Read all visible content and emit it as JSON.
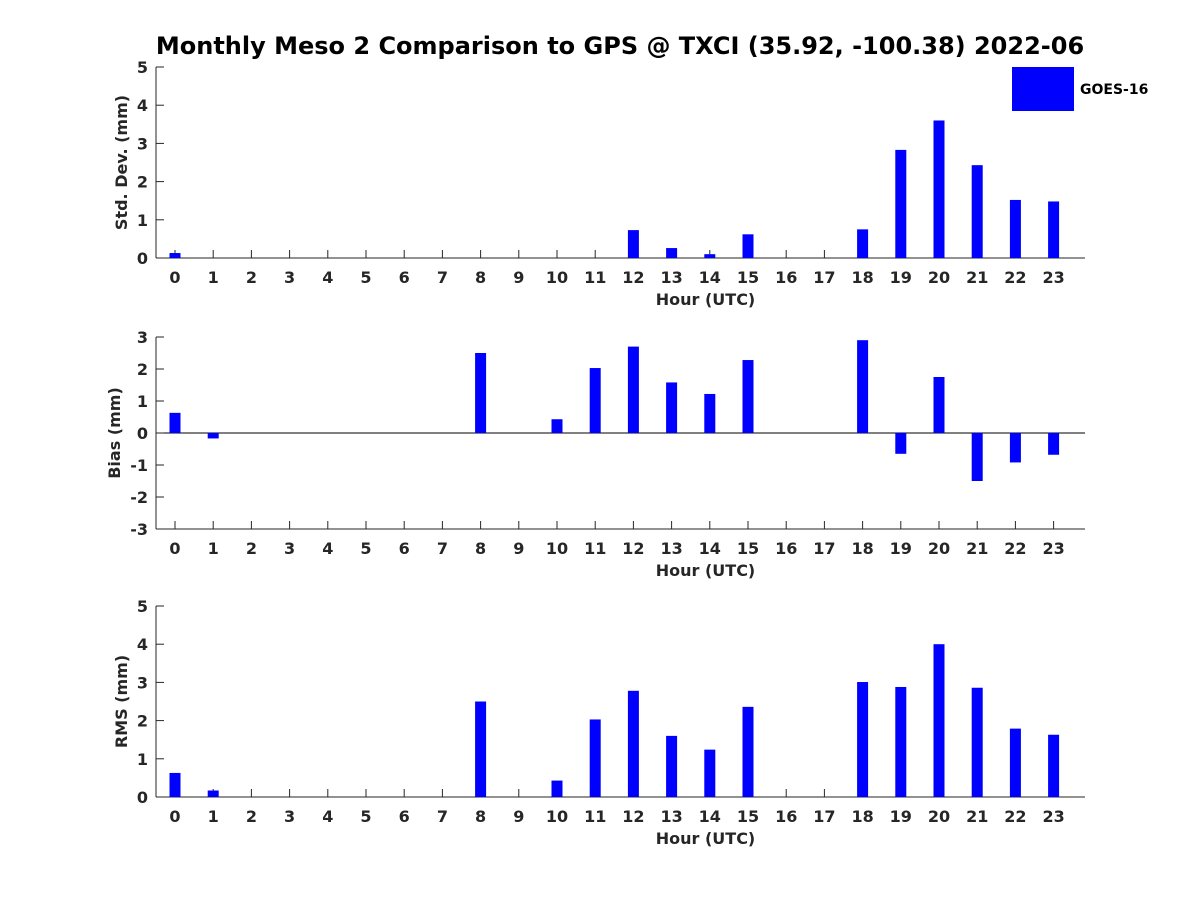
{
  "title": "Monthly Meso 2 Comparison to GPS @ TXCI (35.92, -100.38) 2022-06",
  "legend": {
    "label": "GOES-16",
    "placement": "top-right"
  },
  "colors": {
    "bar": "#0000ff",
    "axis": "#262626"
  },
  "chart_data": [
    {
      "type": "bar",
      "ylabel": "Std. Dev. (mm)",
      "xlabel": "Hour (UTC)",
      "ylim": [
        0,
        5
      ],
      "yticks": [
        0,
        1,
        2,
        3,
        4,
        5
      ],
      "categories": [
        "0",
        "1",
        "2",
        "3",
        "4",
        "5",
        "6",
        "7",
        "8",
        "9",
        "10",
        "11",
        "12",
        "13",
        "14",
        "15",
        "16",
        "17",
        "18",
        "19",
        "20",
        "21",
        "22",
        "23"
      ],
      "series": [
        {
          "name": "GOES-16",
          "values": [
            0.13,
            0,
            0,
            0,
            0,
            0,
            0,
            0,
            0,
            0,
            0,
            0,
            0.73,
            0.26,
            0.1,
            0.62,
            0,
            0,
            0.75,
            2.83,
            3.6,
            2.43,
            1.52,
            1.48
          ]
        }
      ]
    },
    {
      "type": "bar",
      "ylabel": "Bias (mm)",
      "xlabel": "Hour (UTC)",
      "ylim": [
        -3,
        3
      ],
      "yticks": [
        -3,
        -2,
        -1,
        0,
        1,
        2,
        3
      ],
      "categories": [
        "0",
        "1",
        "2",
        "3",
        "4",
        "5",
        "6",
        "7",
        "8",
        "9",
        "10",
        "11",
        "12",
        "13",
        "14",
        "15",
        "16",
        "17",
        "18",
        "19",
        "20",
        "21",
        "22",
        "23"
      ],
      "series": [
        {
          "name": "GOES-16",
          "values": [
            0.63,
            -0.17,
            0,
            0,
            0,
            0,
            0,
            0,
            2.5,
            0,
            0.43,
            2.03,
            2.7,
            1.58,
            1.22,
            2.28,
            0,
            0,
            2.9,
            -0.65,
            1.75,
            -1.5,
            -0.92,
            -0.68
          ]
        }
      ]
    },
    {
      "type": "bar",
      "ylabel": "RMS (mm)",
      "xlabel": "Hour (UTC)",
      "ylim": [
        0,
        5
      ],
      "yticks": [
        0,
        1,
        2,
        3,
        4,
        5
      ],
      "categories": [
        "0",
        "1",
        "2",
        "3",
        "4",
        "5",
        "6",
        "7",
        "8",
        "9",
        "10",
        "11",
        "12",
        "13",
        "14",
        "15",
        "16",
        "17",
        "18",
        "19",
        "20",
        "21",
        "22",
        "23"
      ],
      "series": [
        {
          "name": "GOES-16",
          "values": [
            0.63,
            0.17,
            0,
            0,
            0,
            0,
            0,
            0,
            2.5,
            0,
            0.43,
            2.03,
            2.78,
            1.6,
            1.24,
            2.36,
            0,
            0,
            3.01,
            2.88,
            4.0,
            2.86,
            1.79,
            1.63
          ]
        }
      ]
    }
  ]
}
